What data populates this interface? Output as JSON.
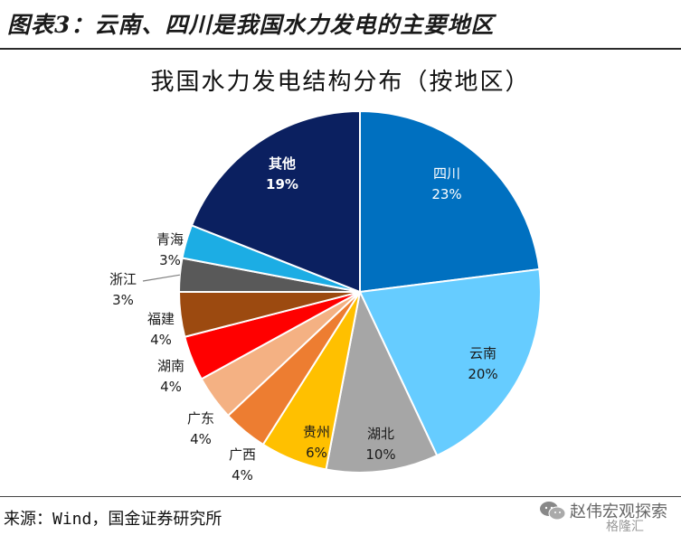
{
  "figure": {
    "title": "图表3：云南、四川是我国水力发电的主要地区",
    "source": "来源：Wind，国金证券研究所"
  },
  "watermark": {
    "text": "赵伟宏观探索",
    "sub_text": "格隆汇",
    "icon": "wechat-icon"
  },
  "chart_data": {
    "type": "pie",
    "title": "我国水力发电结构分布（按地区）",
    "unit": "%",
    "start": "12 o'clock",
    "direction": "clockwise",
    "slices": [
      {
        "label": "四川",
        "value": 23,
        "display": "23%",
        "color": "#0070C0"
      },
      {
        "label": "云南",
        "value": 20,
        "display": "20%",
        "color": "#66CCFF"
      },
      {
        "label": "湖北",
        "value": 10,
        "display": "10%",
        "color": "#A6A6A6"
      },
      {
        "label": "贵州",
        "value": 6,
        "display": "6%",
        "color": "#FFC000"
      },
      {
        "label": "广西",
        "value": 4,
        "display": "4%",
        "color": "#ED7D31"
      },
      {
        "label": "广东",
        "value": 4,
        "display": "4%",
        "color": "#F4B183"
      },
      {
        "label": "湖南",
        "value": 4,
        "display": "4%",
        "color": "#FF0000"
      },
      {
        "label": "福建",
        "value": 4,
        "display": "4%",
        "color": "#9C4A10"
      },
      {
        "label": "浙江",
        "value": 3,
        "display": "3%",
        "color": "#595959"
      },
      {
        "label": "青海",
        "value": 3,
        "display": "3%",
        "color": "#1CADE4"
      },
      {
        "label": "其他",
        "value": 19,
        "display": "19%",
        "color": "#0B2060"
      }
    ]
  }
}
